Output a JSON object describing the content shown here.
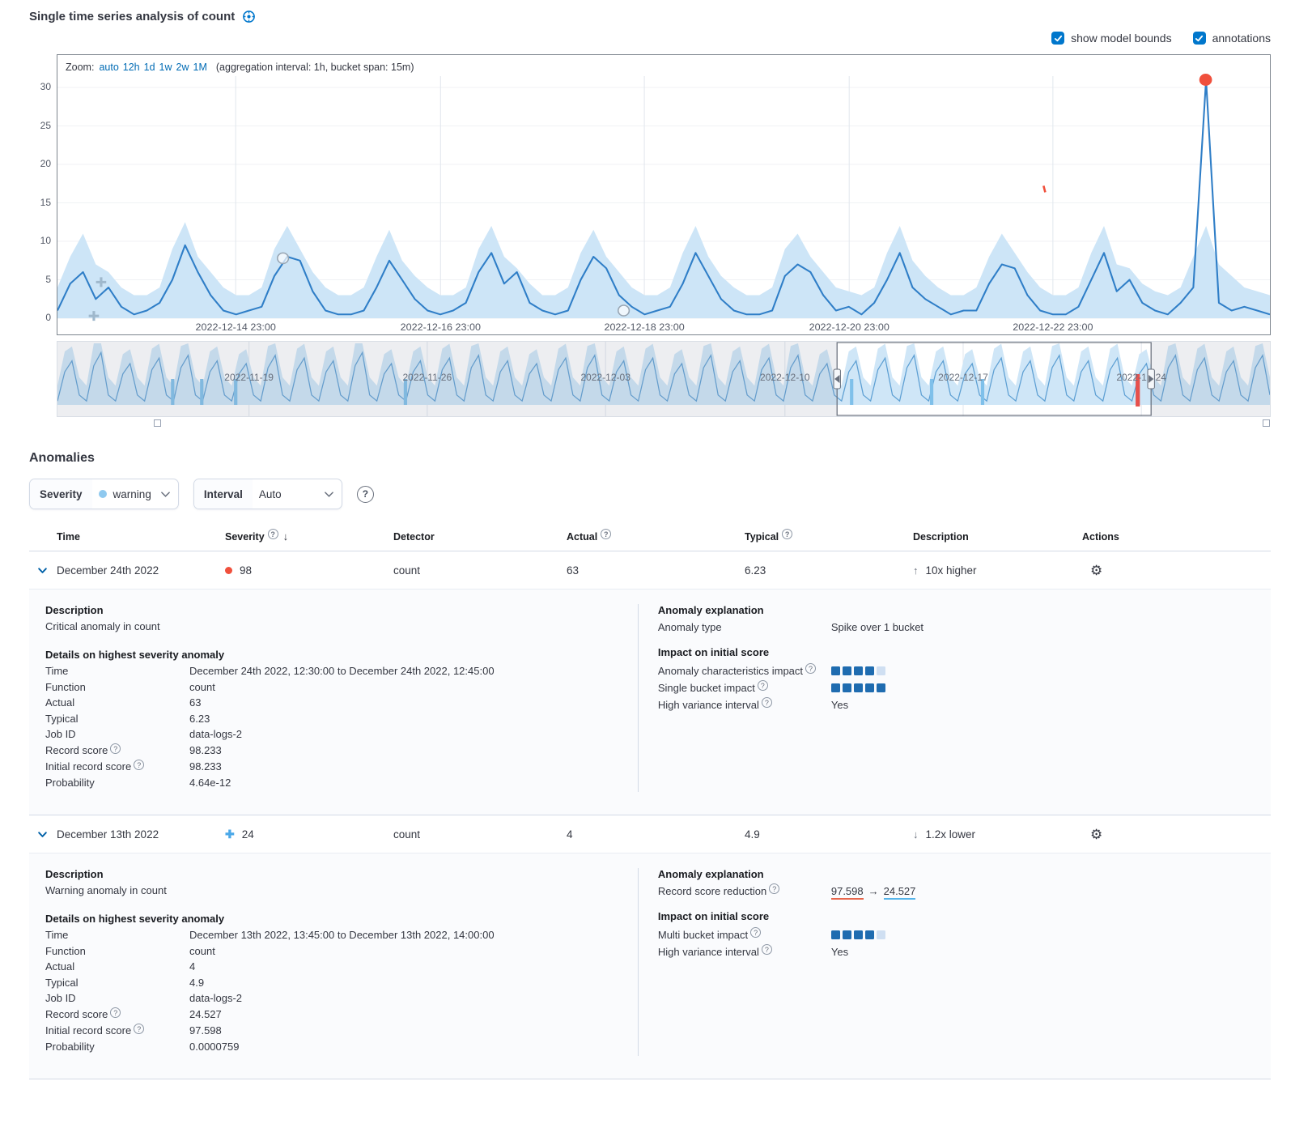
{
  "header": {
    "title": "Single time series analysis of count"
  },
  "toolbar": {
    "show_model_bounds": "show model bounds",
    "annotations": "annotations"
  },
  "chart": {
    "zoom_label": "Zoom:",
    "zoom_options": [
      "auto",
      "12h",
      "1d",
      "1w",
      "2w",
      "1M"
    ],
    "aggregation_note": "(aggregation interval: 1h, bucket span: 15m)"
  },
  "chart_data": [
    {
      "type": "line",
      "name": "main-series",
      "title": "count over time with model bounds",
      "ylim": [
        0,
        32
      ],
      "yticks": [
        0,
        5,
        10,
        15,
        20,
        25,
        30
      ],
      "xticks": [
        {
          "pos": 0.147,
          "label": "2022-12-14 23:00"
        },
        {
          "pos": 0.316,
          "label": "2022-12-16 23:00"
        },
        {
          "pos": 0.484,
          "label": "2022-12-18 23:00"
        },
        {
          "pos": 0.653,
          "label": "2022-12-20 23:00"
        },
        {
          "pos": 0.821,
          "label": "2022-12-22 23:00"
        }
      ],
      "values": [
        1,
        4.5,
        6,
        2.5,
        4,
        1.5,
        0.5,
        1,
        2,
        5,
        9.5,
        6,
        3,
        1,
        0.5,
        1,
        1.5,
        5.5,
        8,
        7.5,
        3.5,
        1,
        0.5,
        0.5,
        1,
        4,
        7.5,
        5,
        2.5,
        1,
        0.5,
        1,
        2,
        6,
        8.5,
        4.5,
        6,
        2,
        1,
        0.5,
        1,
        5,
        8,
        6.5,
        3,
        1.5,
        0.5,
        1,
        1.5,
        4.5,
        8.5,
        5.5,
        2.5,
        1,
        0.5,
        0.5,
        1,
        5.5,
        7,
        6,
        3,
        1,
        1.5,
        0.5,
        2,
        5,
        8.5,
        4,
        2.5,
        1.5,
        0.5,
        1,
        1,
        4.5,
        7,
        6.5,
        3,
        1,
        0.5,
        0.5,
        1.5,
        5,
        8.5,
        3.5,
        5,
        2,
        1,
        0.5,
        2,
        4,
        31,
        2,
        1,
        1.5,
        1,
        0.5
      ],
      "upper": [
        4,
        8,
        11,
        7,
        6,
        4,
        3,
        3,
        4,
        9,
        12.5,
        8,
        6,
        4,
        3,
        3,
        4,
        9,
        12,
        9,
        6,
        4,
        3,
        3,
        4,
        8,
        11.5,
        7.5,
        5.5,
        4,
        3,
        3,
        4,
        9,
        12,
        8,
        6.5,
        4.5,
        3,
        3,
        4,
        8.5,
        11.5,
        8,
        6,
        4,
        3,
        3,
        4,
        8.5,
        12,
        8,
        5.5,
        4,
        3,
        3,
        4,
        9,
        11,
        8,
        6,
        4,
        3.5,
        3,
        4,
        8.5,
        12,
        7.5,
        5.5,
        4,
        3,
        3,
        4,
        8,
        11,
        8.5,
        6,
        4,
        3,
        3,
        4,
        8.5,
        12,
        7,
        6.5,
        4.5,
        3.5,
        3,
        4,
        8,
        12,
        7,
        5.5,
        4,
        3.5,
        3
      ],
      "lower": 0,
      "markers": [
        {
          "x": 0.947,
          "y": 31,
          "type": "critical-dot"
        },
        {
          "x": 0.036,
          "y": 4.7,
          "type": "warning-cross"
        },
        {
          "x": 0.03,
          "y": 0.3,
          "type": "warning-cross"
        },
        {
          "x": 0.186,
          "y": 7.8,
          "type": "open-circle"
        },
        {
          "x": 0.467,
          "y": 1.0,
          "type": "open-circle"
        },
        {
          "x": 0.814,
          "y": 16.8,
          "type": "annotation-dash"
        }
      ],
      "line_color": "#2f7ec7",
      "band_color": "#cde5f7",
      "critical_color": "#f0503c"
    },
    {
      "type": "area",
      "name": "context-overview",
      "daily_peaks": [
        8,
        9.5,
        7.5,
        8.5,
        9,
        8,
        7.5,
        9,
        8.5,
        8,
        9.5,
        7.5,
        8,
        8.5,
        9,
        8,
        7.5,
        8.5,
        9,
        8,
        8.5,
        7.5,
        9,
        8,
        8.5,
        9,
        7.5,
        8,
        8.5,
        9,
        8,
        7.5,
        8.5,
        8,
        9,
        8,
        8.5,
        7.5,
        9,
        8.5,
        8,
        9
      ],
      "xticks": [
        {
          "pos": 0.158,
          "label": "2022-11-19"
        },
        {
          "pos": 0.305,
          "label": "2022-11-26"
        },
        {
          "pos": 0.452,
          "label": "2022-12-03"
        },
        {
          "pos": 0.6,
          "label": "2022-12-10"
        },
        {
          "pos": 0.747,
          "label": "2022-12-17"
        },
        {
          "pos": 0.894,
          "label": "2022-12-24"
        }
      ],
      "anomaly_marks": [
        {
          "pos": 0.095,
          "severity": "warning"
        },
        {
          "pos": 0.119,
          "severity": "warning"
        },
        {
          "pos": 0.147,
          "severity": "warning"
        },
        {
          "pos": 0.287,
          "severity": "warning"
        },
        {
          "pos": 0.655,
          "severity": "warning"
        },
        {
          "pos": 0.721,
          "severity": "warning"
        },
        {
          "pos": 0.763,
          "severity": "warning"
        },
        {
          "pos": 0.891,
          "severity": "critical"
        }
      ],
      "selection": [
        0.643,
        0.902
      ],
      "line_color": "#5d9fd3",
      "band_color": "#cfe6f7",
      "warning_color": "#7fc0ea",
      "critical_color": "#e7504c"
    }
  ],
  "anomalies": {
    "title": "Anomalies",
    "filters": {
      "severity_label": "Severity",
      "severity_value": "warning",
      "interval_label": "Interval",
      "interval_value": "Auto"
    },
    "table": {
      "columns": [
        {
          "label": "Time"
        },
        {
          "label": "Severity",
          "info": true,
          "sort": "down"
        },
        {
          "label": "Detector"
        },
        {
          "label": "Actual",
          "info": true
        },
        {
          "label": "Typical",
          "info": true
        },
        {
          "label": "Description"
        },
        {
          "label": "Actions"
        }
      ],
      "rows": [
        {
          "time": "December 24th 2022",
          "severity_marker": "dot",
          "severity_score": "98",
          "detector": "count",
          "actual": "63",
          "typical": "6.23",
          "direction": "up",
          "description": "10x higher",
          "details": {
            "description_title": "Description",
            "description": "Critical anomaly in count",
            "details_title": "Details on highest severity anomaly",
            "fields": [
              {
                "label": "Time",
                "value": "December 24th 2022, 12:30:00 to December 24th 2022, 12:45:00"
              },
              {
                "label": "Function",
                "value": "count"
              },
              {
                "label": "Actual",
                "value": "63"
              },
              {
                "label": "Typical",
                "value": "6.23"
              },
              {
                "label": "Job ID",
                "value": "data-logs-2"
              },
              {
                "label": "Record score",
                "help": true,
                "value": "98.233"
              },
              {
                "label": "Initial record score",
                "help": true,
                "value": "98.233"
              },
              {
                "label": "Probability",
                "value": "4.64e-12"
              }
            ],
            "explanation_title": "Anomaly explanation",
            "explanation_rows": [
              {
                "kind": "kv",
                "label": "Anomaly type",
                "value": "Spike over 1 bucket"
              },
              {
                "kind": "header",
                "text": "Impact on initial score"
              },
              {
                "kind": "impact",
                "label": "Anomaly characteristics impact",
                "help": true,
                "filled": 4,
                "total": 5
              },
              {
                "kind": "impact",
                "label": "Single bucket impact",
                "help": true,
                "filled": 5,
                "total": 5
              },
              {
                "kind": "kv",
                "label": "High variance interval",
                "help": true,
                "value": "Yes"
              }
            ]
          }
        },
        {
          "time": "December 13th 2022",
          "severity_marker": "plus",
          "severity_score": "24",
          "detector": "count",
          "actual": "4",
          "typical": "4.9",
          "direction": "down",
          "description": "1.2x lower",
          "details": {
            "description_title": "Description",
            "description": "Warning anomaly in count",
            "details_title": "Details on highest severity anomaly",
            "fields": [
              {
                "label": "Time",
                "value": "December 13th 2022, 13:45:00 to December 13th 2022, 14:00:00"
              },
              {
                "label": "Function",
                "value": "count"
              },
              {
                "label": "Actual",
                "value": "4"
              },
              {
                "label": "Typical",
                "value": "4.9"
              },
              {
                "label": "Job ID",
                "value": "data-logs-2"
              },
              {
                "label": "Record score",
                "help": true,
                "value": "24.527"
              },
              {
                "label": "Initial record score",
                "help": true,
                "value": "97.598"
              },
              {
                "label": "Probability",
                "value": "0.0000759"
              }
            ],
            "explanation_title": "Anomaly explanation",
            "explanation_rows": [
              {
                "kind": "reduction",
                "label": "Record score reduction",
                "help": true,
                "from": "97.598",
                "to": "24.527"
              },
              {
                "kind": "header",
                "text": "Impact on initial score"
              },
              {
                "kind": "impact",
                "label": "Multi bucket impact",
                "help": true,
                "filled": 4,
                "total": 5
              },
              {
                "kind": "kv",
                "label": "High variance interval",
                "help": true,
                "value": "Yes"
              }
            ]
          }
        }
      ]
    }
  }
}
